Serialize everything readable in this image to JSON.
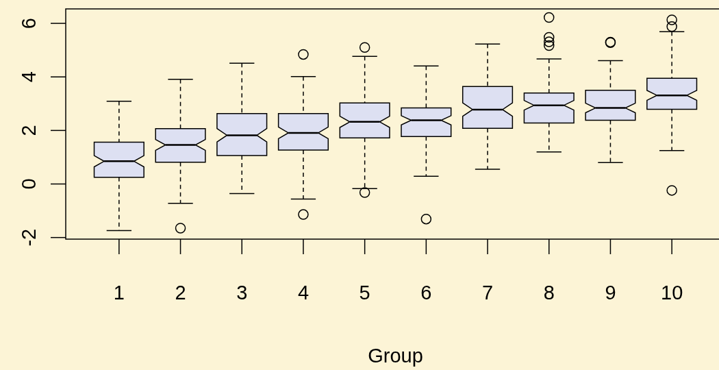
{
  "chart_data": {
    "type": "box",
    "xlabel": "Group",
    "categories": [
      "1",
      "2",
      "3",
      "4",
      "5",
      "6",
      "7",
      "8",
      "9",
      "10"
    ],
    "color": "#dde0f2",
    "boxes": [
      {
        "low": -1.74,
        "q1": 0.25,
        "median": 0.85,
        "q3": 1.56,
        "high": 3.09
      },
      {
        "low": -0.72,
        "q1": 0.81,
        "median": 1.46,
        "q3": 2.07,
        "high": 3.91,
        "outliers": [
          -1.65
        ]
      },
      {
        "low": -0.36,
        "q1": 1.06,
        "median": 1.82,
        "q3": 2.63,
        "high": 4.51
      },
      {
        "low": -0.56,
        "q1": 1.27,
        "median": 1.91,
        "q3": 2.63,
        "high": 4.01,
        "outliers": [
          4.84,
          -1.14
        ]
      },
      {
        "low": -0.17,
        "q1": 1.72,
        "median": 2.32,
        "q3": 3.03,
        "high": 4.77,
        "outliers": [
          5.1,
          -0.32
        ]
      },
      {
        "low": 0.29,
        "q1": 1.77,
        "median": 2.38,
        "q3": 2.84,
        "high": 4.41,
        "outliers": [
          -1.31
        ]
      },
      {
        "low": 0.55,
        "q1": 2.08,
        "median": 2.78,
        "q3": 3.64,
        "high": 5.23
      },
      {
        "low": 1.2,
        "q1": 2.28,
        "median": 2.94,
        "q3": 3.4,
        "high": 4.67,
        "outliers": [
          6.22,
          5.48,
          5.31,
          5.17
        ]
      },
      {
        "low": 0.8,
        "q1": 2.38,
        "median": 2.84,
        "q3": 3.5,
        "high": 4.61,
        "outliers": [
          5.28,
          5.3
        ]
      },
      {
        "low": 1.25,
        "q1": 2.79,
        "median": 3.31,
        "q3": 3.95,
        "high": 5.69,
        "outliers": [
          6.13,
          5.88,
          -0.24
        ]
      }
    ],
    "ylim": [
      -2.06,
      6.54
    ],
    "yticks": [
      -2,
      0,
      2,
      4,
      6
    ]
  }
}
